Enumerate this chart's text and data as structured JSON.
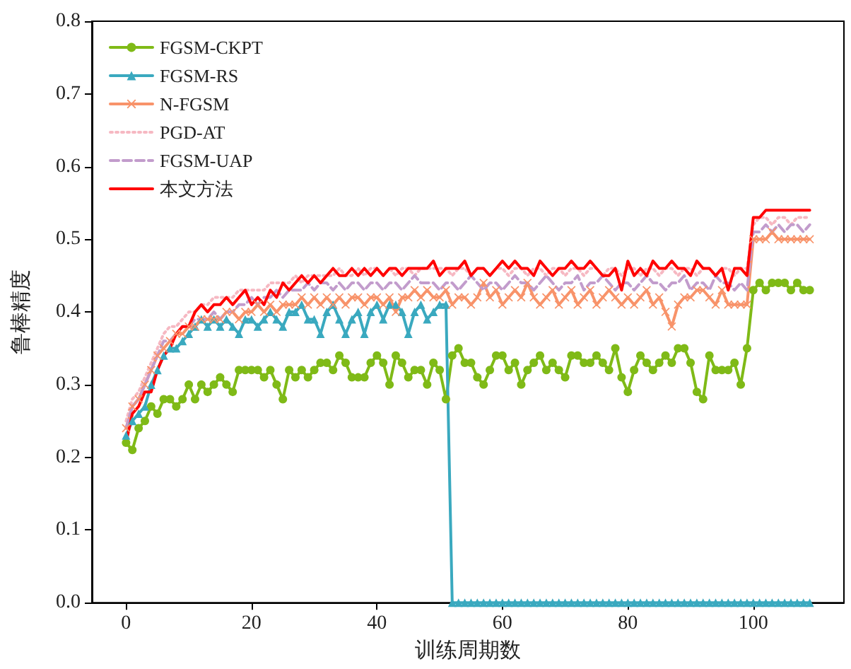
{
  "chart_data": {
    "type": "line",
    "xlabel": "训练周期数",
    "ylabel": "鲁棒精度",
    "x": [
      0,
      1,
      2,
      3,
      4,
      5,
      6,
      7,
      8,
      9,
      10,
      11,
      12,
      13,
      14,
      15,
      16,
      17,
      18,
      19,
      20,
      21,
      22,
      23,
      24,
      25,
      26,
      27,
      28,
      29,
      30,
      31,
      32,
      33,
      34,
      35,
      36,
      37,
      38,
      39,
      40,
      41,
      42,
      43,
      44,
      45,
      46,
      47,
      48,
      49,
      50,
      51,
      52,
      53,
      54,
      55,
      56,
      57,
      58,
      59,
      60,
      61,
      62,
      63,
      64,
      65,
      66,
      67,
      68,
      69,
      70,
      71,
      72,
      73,
      74,
      75,
      76,
      77,
      78,
      79,
      80,
      81,
      82,
      83,
      84,
      85,
      86,
      87,
      88,
      89,
      90,
      91,
      92,
      93,
      94,
      95,
      96,
      97,
      98,
      99,
      100,
      101,
      102,
      103,
      104,
      105,
      106,
      107,
      108,
      109
    ],
    "xlim": [
      -5.45,
      114.45
    ],
    "xticks": [
      0,
      20,
      40,
      60,
      80,
      100
    ],
    "ylim": [
      0,
      0.8
    ],
    "yticks": [
      {
        "value": 0,
        "label": "0.0"
      },
      {
        "value": 0.1,
        "label": "0.1"
      },
      {
        "value": 0.2,
        "label": "0.2"
      },
      {
        "value": 0.3,
        "label": "0.3"
      },
      {
        "value": 0.4,
        "label": "0.4"
      },
      {
        "value": 0.5,
        "label": "0.5"
      },
      {
        "value": 0.6,
        "label": "0.6"
      },
      {
        "value": 0.7,
        "label": "0.7"
      },
      {
        "value": 0.8,
        "label": "0.8"
      }
    ],
    "grid": false,
    "legend": "top left",
    "series": [
      {
        "name": "FGSM-CKPT",
        "color": "#7fba17",
        "marker": "circle",
        "line_style": "solid",
        "values": [
          0.22,
          0.21,
          0.24,
          0.25,
          0.27,
          0.26,
          0.28,
          0.28,
          0.27,
          0.28,
          0.3,
          0.28,
          0.3,
          0.29,
          0.3,
          0.31,
          0.3,
          0.29,
          0.32,
          0.32,
          0.32,
          0.32,
          0.31,
          0.32,
          0.3,
          0.28,
          0.32,
          0.31,
          0.32,
          0.31,
          0.32,
          0.33,
          0.33,
          0.32,
          0.34,
          0.33,
          0.31,
          0.31,
          0.31,
          0.33,
          0.34,
          0.33,
          0.3,
          0.34,
          0.33,
          0.31,
          0.32,
          0.32,
          0.3,
          0.33,
          0.32,
          0.28,
          0.34,
          0.35,
          0.33,
          0.33,
          0.31,
          0.3,
          0.32,
          0.34,
          0.34,
          0.32,
          0.33,
          0.3,
          0.32,
          0.33,
          0.34,
          0.32,
          0.33,
          0.32,
          0.31,
          0.34,
          0.34,
          0.33,
          0.33,
          0.34,
          0.33,
          0.32,
          0.35,
          0.31,
          0.29,
          0.32,
          0.34,
          0.33,
          0.32,
          0.33,
          0.34,
          0.33,
          0.35,
          0.35,
          0.33,
          0.29,
          0.28,
          0.34,
          0.32,
          0.32,
          0.32,
          0.33,
          0.3,
          0.35,
          0.43,
          0.44,
          0.43,
          0.44,
          0.44,
          0.44,
          0.43,
          0.44,
          0.43,
          0.43
        ]
      },
      {
        "name": "FGSM-RS",
        "color": "#3aa9bf",
        "marker": "triangle",
        "line_style": "solid",
        "values": [
          0.23,
          0.25,
          0.26,
          0.27,
          0.3,
          0.32,
          0.34,
          0.35,
          0.35,
          0.36,
          0.37,
          0.38,
          0.39,
          0.38,
          0.39,
          0.38,
          0.39,
          0.38,
          0.37,
          0.39,
          0.39,
          0.38,
          0.39,
          0.4,
          0.39,
          0.38,
          0.4,
          0.4,
          0.41,
          0.39,
          0.39,
          0.37,
          0.4,
          0.41,
          0.39,
          0.37,
          0.39,
          0.4,
          0.37,
          0.4,
          0.41,
          0.39,
          0.41,
          0.41,
          0.4,
          0.37,
          0.4,
          0.41,
          0.39,
          0.4,
          0.41,
          0.41,
          0,
          0,
          0,
          0,
          0,
          0,
          0,
          0,
          0,
          0,
          0,
          0,
          0,
          0,
          0,
          0,
          0,
          0,
          0,
          0,
          0,
          0,
          0,
          0,
          0,
          0,
          0,
          0,
          0,
          0,
          0,
          0,
          0,
          0,
          0,
          0,
          0,
          0,
          0,
          0,
          0,
          0,
          0,
          0,
          0,
          0,
          0,
          0,
          0,
          0,
          0,
          0,
          0,
          0,
          0,
          0,
          0,
          0
        ]
      },
      {
        "name": "N-FGSM",
        "color": "#f8936a",
        "marker": "cross",
        "line_style": "solid",
        "values": [
          0.24,
          0.27,
          0.28,
          0.3,
          0.32,
          0.34,
          0.35,
          0.36,
          0.37,
          0.37,
          0.38,
          0.38,
          0.39,
          0.39,
          0.39,
          0.39,
          0.4,
          0.4,
          0.39,
          0.4,
          0.4,
          0.41,
          0.4,
          0.41,
          0.4,
          0.41,
          0.41,
          0.41,
          0.42,
          0.41,
          0.42,
          0.41,
          0.42,
          0.41,
          0.42,
          0.41,
          0.42,
          0.42,
          0.41,
          0.42,
          0.42,
          0.41,
          0.42,
          0.4,
          0.42,
          0.42,
          0.43,
          0.42,
          0.43,
          0.42,
          0.42,
          0.43,
          0.41,
          0.42,
          0.42,
          0.41,
          0.42,
          0.44,
          0.42,
          0.43,
          0.41,
          0.42,
          0.43,
          0.42,
          0.44,
          0.42,
          0.41,
          0.42,
          0.43,
          0.41,
          0.42,
          0.43,
          0.41,
          0.42,
          0.43,
          0.41,
          0.42,
          0.43,
          0.42,
          0.41,
          0.42,
          0.41,
          0.42,
          0.43,
          0.41,
          0.42,
          0.4,
          0.38,
          0.41,
          0.42,
          0.42,
          0.43,
          0.43,
          0.42,
          0.41,
          0.43,
          0.41,
          0.41,
          0.41,
          0.41,
          0.5,
          0.5,
          0.5,
          0.51,
          0.5,
          0.5,
          0.5,
          0.5,
          0.5,
          0.5
        ]
      },
      {
        "name": "PGD-AT",
        "color": "#f6b8c2",
        "marker": "none",
        "line_style": "dotted",
        "values": [
          0.25,
          0.28,
          0.29,
          0.31,
          0.33,
          0.35,
          0.37,
          0.38,
          0.38,
          0.39,
          0.4,
          0.4,
          0.41,
          0.41,
          0.42,
          0.42,
          0.42,
          0.42,
          0.43,
          0.43,
          0.43,
          0.43,
          0.43,
          0.44,
          0.44,
          0.44,
          0.44,
          0.45,
          0.44,
          0.45,
          0.45,
          0.45,
          0.45,
          0.45,
          0.46,
          0.45,
          0.45,
          0.46,
          0.45,
          0.46,
          0.46,
          0.45,
          0.46,
          0.45,
          0.46,
          0.46,
          0.45,
          0.46,
          0.46,
          0.46,
          0.46,
          0.46,
          0.45,
          0.46,
          0.46,
          0.45,
          0.46,
          0.46,
          0.45,
          0.46,
          0.46,
          0.45,
          0.46,
          0.46,
          0.45,
          0.46,
          0.46,
          0.45,
          0.46,
          0.46,
          0.45,
          0.46,
          0.46,
          0.45,
          0.46,
          0.46,
          0.45,
          0.46,
          0.46,
          0.45,
          0.46,
          0.46,
          0.45,
          0.46,
          0.46,
          0.45,
          0.46,
          0.46,
          0.45,
          0.46,
          0.46,
          0.45,
          0.46,
          0.46,
          0.45,
          0.46,
          0.46,
          0.45,
          0.46,
          0.46,
          0.52,
          0.53,
          0.53,
          0.52,
          0.53,
          0.53,
          0.52,
          0.53,
          0.53,
          0.53
        ]
      },
      {
        "name": "FGSM-UAP",
        "color": "#c29ccc",
        "marker": "none",
        "line_style": "dashed",
        "values": [
          0.24,
          0.27,
          0.28,
          0.3,
          0.32,
          0.34,
          0.36,
          0.36,
          0.37,
          0.38,
          0.38,
          0.39,
          0.39,
          0.39,
          0.4,
          0.39,
          0.4,
          0.4,
          0.41,
          0.41,
          0.42,
          0.41,
          0.42,
          0.42,
          0.43,
          0.42,
          0.43,
          0.43,
          0.43,
          0.44,
          0.43,
          0.44,
          0.44,
          0.43,
          0.44,
          0.43,
          0.44,
          0.44,
          0.43,
          0.44,
          0.44,
          0.43,
          0.44,
          0.44,
          0.43,
          0.44,
          0.45,
          0.44,
          0.44,
          0.44,
          0.43,
          0.44,
          0.44,
          0.43,
          0.44,
          0.45,
          0.44,
          0.43,
          0.44,
          0.44,
          0.43,
          0.44,
          0.45,
          0.44,
          0.44,
          0.43,
          0.44,
          0.45,
          0.44,
          0.43,
          0.44,
          0.44,
          0.45,
          0.43,
          0.44,
          0.44,
          0.45,
          0.44,
          0.43,
          0.44,
          0.44,
          0.43,
          0.44,
          0.45,
          0.44,
          0.44,
          0.43,
          0.44,
          0.44,
          0.45,
          0.43,
          0.44,
          0.44,
          0.43,
          0.45,
          0.44,
          0.44,
          0.43,
          0.44,
          0.43,
          0.51,
          0.51,
          0.52,
          0.51,
          0.52,
          0.51,
          0.52,
          0.52,
          0.51,
          0.52
        ]
      },
      {
        "name": "本文方法",
        "color": "#ff0000",
        "marker": "none",
        "line_style": "solid",
        "values": [
          0.22,
          0.26,
          0.27,
          0.29,
          0.29,
          0.32,
          0.34,
          0.35,
          0.37,
          0.38,
          0.38,
          0.4,
          0.41,
          0.4,
          0.41,
          0.41,
          0.42,
          0.41,
          0.42,
          0.43,
          0.41,
          0.42,
          0.41,
          0.43,
          0.42,
          0.44,
          0.43,
          0.44,
          0.45,
          0.44,
          0.45,
          0.44,
          0.45,
          0.46,
          0.45,
          0.45,
          0.46,
          0.45,
          0.46,
          0.45,
          0.46,
          0.45,
          0.46,
          0.46,
          0.45,
          0.46,
          0.46,
          0.46,
          0.46,
          0.47,
          0.45,
          0.46,
          0.46,
          0.46,
          0.47,
          0.45,
          0.46,
          0.46,
          0.45,
          0.46,
          0.47,
          0.46,
          0.47,
          0.46,
          0.46,
          0.45,
          0.47,
          0.46,
          0.45,
          0.46,
          0.46,
          0.47,
          0.46,
          0.46,
          0.47,
          0.46,
          0.45,
          0.45,
          0.46,
          0.43,
          0.47,
          0.45,
          0.46,
          0.45,
          0.47,
          0.46,
          0.46,
          0.47,
          0.46,
          0.46,
          0.45,
          0.47,
          0.46,
          0.46,
          0.45,
          0.46,
          0.43,
          0.46,
          0.46,
          0.45,
          0.53,
          0.53,
          0.54,
          0.54,
          0.54,
          0.54,
          0.54,
          0.54,
          0.54,
          0.54
        ]
      }
    ]
  }
}
